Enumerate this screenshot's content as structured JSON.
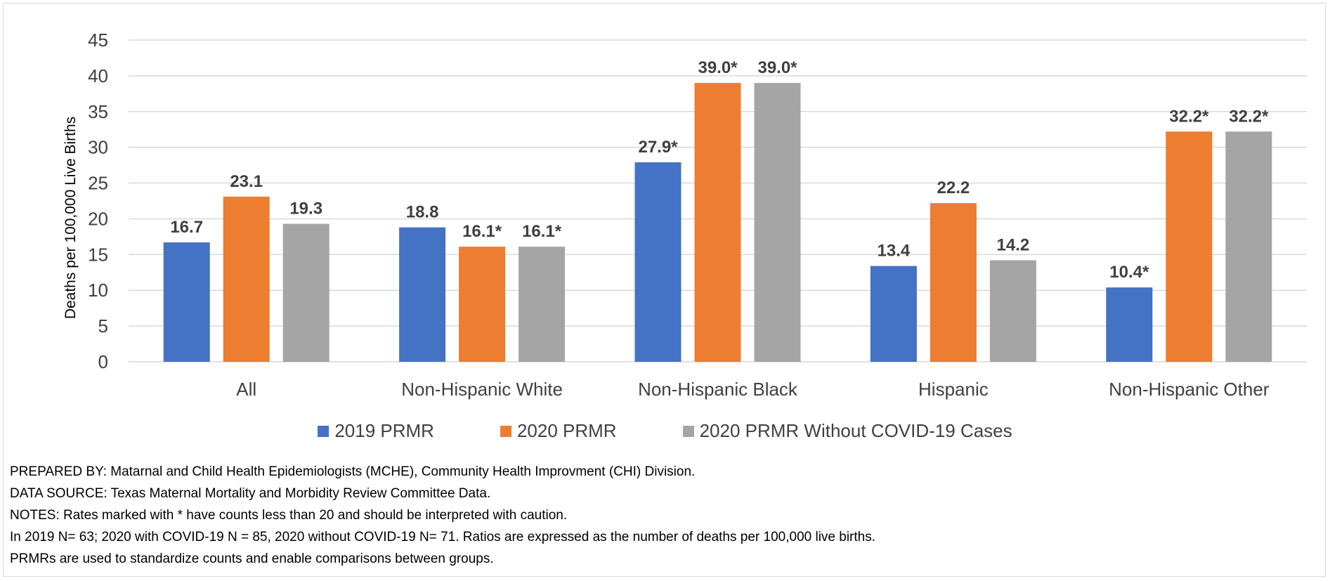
{
  "chart_data": {
    "type": "bar",
    "ylabel": "Deaths per 100,000 Live Births",
    "xlabel": "",
    "ylim": [
      0,
      45
    ],
    "yticks": [
      0,
      5,
      10,
      15,
      20,
      25,
      30,
      35,
      40,
      45
    ],
    "grid": true,
    "legend_position": "bottom",
    "categories": [
      "All",
      "Non-Hispanic White",
      "Non-Hispanic Black",
      "Hispanic",
      "Non-Hispanic Other"
    ],
    "series": [
      {
        "name": "2019 PRMR",
        "color": "#4472c4",
        "values": [
          16.7,
          18.8,
          27.9,
          13.4,
          10.4
        ],
        "labels": [
          "16.7",
          "18.8",
          "27.9*",
          "13.4",
          "10.4*"
        ]
      },
      {
        "name": "2020 PRMR",
        "color": "#ed7d31",
        "values": [
          23.1,
          16.1,
          39.0,
          22.2,
          32.2
        ],
        "labels": [
          "23.1",
          "16.1*",
          "39.0*",
          "22.2",
          "32.2*"
        ]
      },
      {
        "name": "2020 PRMR Without COVID-19 Cases",
        "color": "#a5a5a5",
        "values": [
          19.3,
          16.1,
          39.0,
          14.2,
          32.2
        ],
        "labels": [
          "19.3",
          "16.1*",
          "39.0*",
          "14.2",
          "32.2*"
        ]
      }
    ]
  },
  "notes": [
    "PREPARED BY: Matarnal and Child Health Epidemiologists (MCHE), Community Health Improvment (CHI) Division.",
    "DATA SOURCE: Texas Maternal Mortality and Morbidity Review Committee Data.",
    "NOTES: Rates marked with * have counts less than 20 and should be interpreted with caution.",
    "In 2019 N= 63; 2020 with COVID-19 N = 85, 2020 without COVID-19 N= 71.  Ratios are expressed as the number of deaths per 100,000 live births.",
    "PRMRs are used to standardize counts and enable comparisons between groups."
  ]
}
